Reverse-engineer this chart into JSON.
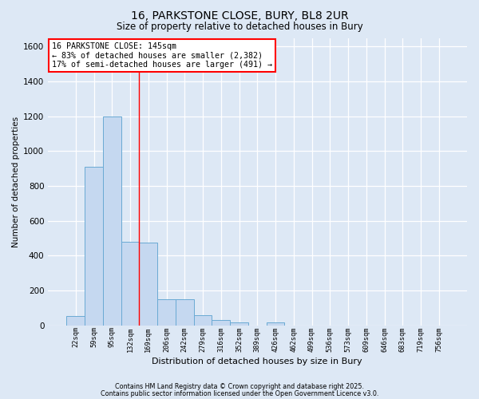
{
  "title_line1": "16, PARKSTONE CLOSE, BURY, BL8 2UR",
  "title_line2": "Size of property relative to detached houses in Bury",
  "bar_categories": [
    "22sqm",
    "59sqm",
    "95sqm",
    "132sqm",
    "169sqm",
    "206sqm",
    "242sqm",
    "279sqm",
    "316sqm",
    "352sqm",
    "389sqm",
    "426sqm",
    "462sqm",
    "499sqm",
    "536sqm",
    "573sqm",
    "609sqm",
    "646sqm",
    "683sqm",
    "719sqm",
    "756sqm"
  ],
  "bar_values": [
    55,
    910,
    1200,
    480,
    475,
    150,
    150,
    60,
    30,
    15,
    0,
    15,
    0,
    0,
    0,
    0,
    0,
    0,
    0,
    0,
    0
  ],
  "bar_color": "#c5d8f0",
  "bar_edge_color": "#6aaad4",
  "ylabel": "Number of detached properties",
  "xlabel": "Distribution of detached houses by size in Bury",
  "ylim": [
    0,
    1650
  ],
  "yticks": [
    0,
    200,
    400,
    600,
    800,
    1000,
    1200,
    1400,
    1600
  ],
  "property_line_x": 3.5,
  "property_line_color": "red",
  "annotation_text": "16 PARKSTONE CLOSE: 145sqm\n← 83% of detached houses are smaller (2,382)\n17% of semi-detached houses are larger (491) →",
  "annotation_box_color": "white",
  "annotation_border_color": "red",
  "footnote1": "Contains HM Land Registry data © Crown copyright and database right 2025.",
  "footnote2": "Contains public sector information licensed under the Open Government Licence v3.0.",
  "background_color": "#dde8f5",
  "grid_color": "white"
}
